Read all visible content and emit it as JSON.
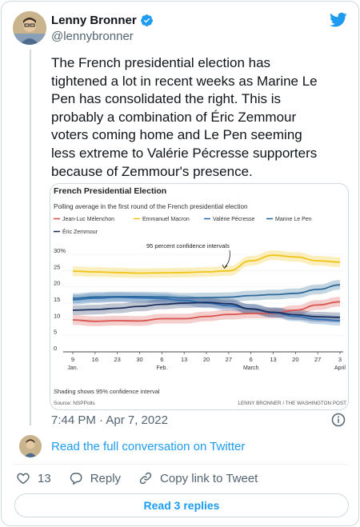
{
  "author": {
    "name": "Lenny Bronner",
    "handle": "@lennybronner"
  },
  "tweet": {
    "text": "The French presidential election has tightened a lot in recent weeks as Marine Le Pen has consolidated the right. This is probably a combination of Éric Zemmour voters coming home and Le Pen seeming less extreme to Valérie Pécresse supporters because of Zemmour's presence.",
    "timestamp": "7:44 PM · Apr 7, 2022"
  },
  "conversation_link": "Read the full conversation on Twitter",
  "actions": {
    "like_count": "13",
    "reply_label": "Reply",
    "copy_label": "Copy link to Tweet"
  },
  "read_replies_label": "Read 3 replies",
  "icons": [
    "verified-badge-icon",
    "twitter-bird-icon",
    "info-icon",
    "heart-icon",
    "reply-bubble-icon",
    "link-icon"
  ],
  "colors": {
    "accent": "#1d9bf0",
    "muted": "#536471",
    "melenchon": "#d9534f",
    "macron": "#f0c419",
    "pecresse": "#2f6fb4",
    "lepen": "#2d6a99",
    "zemmour": "#1b2f5e"
  },
  "chart_data": {
    "type": "line",
    "title": "French Presidential Election",
    "subtitle": "Polling average in the first round of the French presidential election",
    "annotation": "95 percent confidence intervals",
    "footnote": "Shading shows 95% confidence interval",
    "source": "Source: NSPPolls",
    "credit": "LENNY BRONNER / THE WASHINGTON POST",
    "legend_position": "top",
    "grid": true,
    "ylim": [
      0,
      32
    ],
    "y_ticks": [
      "0",
      "5",
      "10",
      "15",
      "20",
      "25",
      "30%"
    ],
    "x_ticks": [
      {
        "day": "9",
        "month": "Jan."
      },
      {
        "day": "16",
        "month": ""
      },
      {
        "day": "23",
        "month": ""
      },
      {
        "day": "30",
        "month": ""
      },
      {
        "day": "6",
        "month": "Feb."
      },
      {
        "day": "13",
        "month": ""
      },
      {
        "day": "20",
        "month": ""
      },
      {
        "day": "27",
        "month": ""
      },
      {
        "day": "6",
        "month": "March"
      },
      {
        "day": "13",
        "month": ""
      },
      {
        "day": "20",
        "month": ""
      },
      {
        "day": "27",
        "month": ""
      },
      {
        "day": "3",
        "month": "April"
      }
    ],
    "series": [
      {
        "name": "Jean-Luc Mélenchon",
        "color": "#d9534f",
        "values": [
          9.8,
          9.4,
          9.6,
          9.5,
          10.2,
          10.2,
          10.9,
          11.5,
          11.8,
          11.8,
          12.8,
          14.4,
          15.4
        ]
      },
      {
        "name": "Emmanuel Macron",
        "color": "#f0c419",
        "values": [
          24.8,
          24.6,
          24.4,
          24.2,
          24.3,
          24.4,
          24.6,
          24.9,
          28.0,
          29.7,
          29.2,
          28.0,
          27.6
        ]
      },
      {
        "name": "Valérie Pécresse",
        "color": "#2f6fb4",
        "values": [
          16.0,
          16.5,
          16.8,
          16.6,
          16.4,
          15.8,
          15.0,
          14.2,
          13.2,
          12.0,
          10.9,
          10.0,
          9.6
        ]
      },
      {
        "name": "Marine Le Pen",
        "color": "#2d6a99",
        "values": [
          16.5,
          16.9,
          17.0,
          17.0,
          16.9,
          16.6,
          16.7,
          16.8,
          17.3,
          17.6,
          18.0,
          19.2,
          20.6
        ]
      },
      {
        "name": "Éric Zemmour",
        "color": "#1b2f5e",
        "values": [
          12.8,
          13.0,
          13.4,
          14.0,
          14.6,
          15.0,
          15.2,
          14.8,
          13.2,
          12.2,
          11.4,
          10.8,
          10.6
        ]
      }
    ],
    "ci_half_width": [
      1.5,
      1.5,
      1.5,
      1.5,
      1.5,
      1.5,
      1.5,
      1.5,
      1.5,
      1.5,
      1.5,
      1.5,
      1.5
    ]
  }
}
